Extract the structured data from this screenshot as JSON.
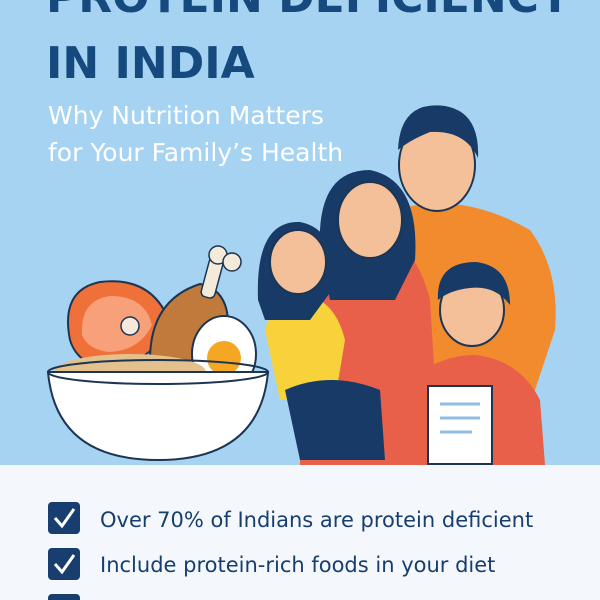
{
  "header": {
    "title_line1": "PROTEIN DEFICIENCY",
    "title_line2": "IN INDIA",
    "subtitle_line1": "Why Nutrition Matters",
    "subtitle_line2": "for Your Family’s Health"
  },
  "bullets": [
    "Over 70% of Indians are protein deficient",
    "Include protein-rich foods in your diet"
  ]
}
